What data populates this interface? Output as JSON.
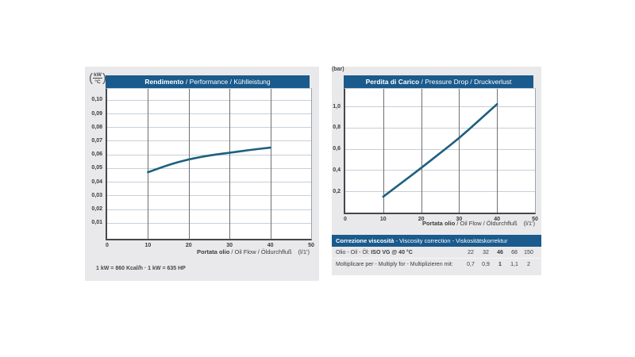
{
  "colors": {
    "header_blue": "#1a5a8c",
    "panel_gray": "#e9e9eb",
    "curve_blue": "#1e5f80",
    "grid_light": "#c6cfd8",
    "grid_dark": "#707070"
  },
  "chart_data": [
    {
      "type": "line",
      "title_bold": "Rendimento",
      "title_rest": " / Performance / Kühlleistung",
      "y_unit_numerator": "kW",
      "y_unit_denominator": "°C",
      "x": [
        10,
        15,
        20,
        25,
        30,
        35,
        40
      ],
      "y": [
        0.047,
        0.0525,
        0.0565,
        0.0593,
        0.0612,
        0.0633,
        0.065
      ],
      "xlim": [
        0,
        50
      ],
      "xticks": [
        0,
        10,
        20,
        30,
        40,
        50
      ],
      "xtick_labels": [
        "0",
        "10",
        "20",
        "30",
        "40",
        "50"
      ],
      "ytick_values": [
        0.01,
        0.02,
        0.03,
        0.04,
        0.05,
        0.06,
        0.07,
        0.08,
        0.09,
        0.1
      ],
      "ytick_labels": [
        "0,01",
        "0,02",
        "0,03",
        "0,04",
        "0,05",
        "0,06",
        "0,07",
        "0,08",
        "0,09",
        "0,10"
      ],
      "xlabel_bold": "Portata olio",
      "xlabel_rest": " / Oil Flow / Öldurchfluß",
      "xlabel_unit": "(l/1')",
      "grid": true,
      "legend": "none",
      "footnote": "1 kW = 860 Kcal/h  ·  1 kW = 635 HP"
    },
    {
      "type": "line",
      "title_bold": "Perdita di Carico",
      "title_rest": " / Pressure Drop / Druckverlust",
      "y_unit": "(bar)",
      "x": [
        10,
        15,
        20,
        25,
        30,
        35,
        40
      ],
      "y": [
        0.15,
        0.285,
        0.42,
        0.56,
        0.7,
        0.86,
        1.02
      ],
      "xlim": [
        0,
        50
      ],
      "xticks": [
        0,
        10,
        20,
        30,
        40,
        50
      ],
      "xtick_labels": [
        "0",
        "10",
        "20",
        "30",
        "40",
        "50"
      ],
      "ytick_values": [
        0.2,
        0.4,
        0.6,
        0.8,
        1.0
      ],
      "ytick_labels": [
        "0,2",
        "0,4",
        "0,6",
        "0,8",
        "1,0"
      ],
      "xlabel_bold": "Portata olio",
      "xlabel_rest": " / Oil Flow / Öldurchfluß",
      "xlabel_unit": "(l/1')",
      "grid": true,
      "legend": "none"
    }
  ],
  "viscosity_table": {
    "header_bold": "Correzione viscosità",
    "header_rest": " - Viscosity correction - Viskositätskorrektur",
    "row_oil_label": "Olio - Oil - Öl: ",
    "row_oil_label_bold": "ISO VG @ 40 °C",
    "row_oil_values": [
      "22",
      "32",
      "46",
      "68",
      "150"
    ],
    "row_multiply_label": "Moltiplicare per - Multiply for - Multiplizieren mit:",
    "row_multiply_values": [
      "0,7",
      "0,9",
      "1",
      "1,1",
      "2"
    ],
    "bold_column_index": 2
  }
}
